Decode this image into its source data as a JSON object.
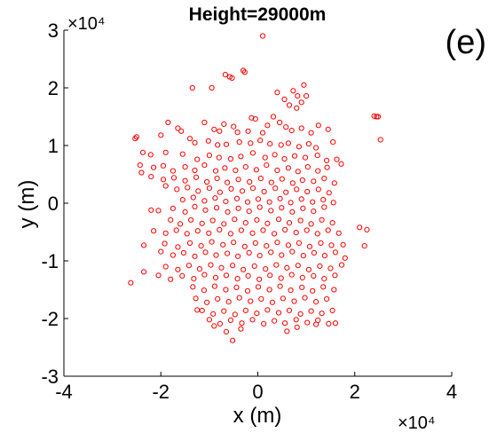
{
  "chart_data": {
    "type": "scatter",
    "title": "Height=29000m",
    "panel_label": "(e)",
    "xlabel": "x (m)",
    "ylabel": "y (m)",
    "x_multiplier": "×10⁴",
    "y_multiplier": "×10⁴",
    "xlim": [
      -40000,
      40000
    ],
    "ylim": [
      -30000,
      30000
    ],
    "x_ticks": [
      -40000,
      -20000,
      0,
      20000,
      40000
    ],
    "x_tick_labels": [
      "-4",
      "-2",
      "0",
      "2",
      "4"
    ],
    "y_ticks": [
      -30000,
      -20000,
      -10000,
      0,
      10000,
      20000,
      30000
    ],
    "y_tick_labels": [
      "-3",
      "-2",
      "-1",
      "0",
      "1",
      "2",
      "3"
    ],
    "grid": false,
    "marker": "circle-open",
    "color": "#ff0000",
    "points": [
      [
        1000,
        29000
      ],
      [
        -3000,
        23000
      ],
      [
        -2700,
        22700
      ],
      [
        -6700,
        22300
      ],
      [
        -5800,
        21900
      ],
      [
        -5300,
        21700
      ],
      [
        -13500,
        20000
      ],
      [
        -9500,
        20000
      ],
      [
        9500,
        20500
      ],
      [
        7300,
        19500
      ],
      [
        4000,
        19200
      ],
      [
        8200,
        18600
      ],
      [
        10000,
        18600
      ],
      [
        5500,
        18000
      ],
      [
        6500,
        17000
      ],
      [
        9000,
        17500
      ],
      [
        8000,
        16500
      ],
      [
        24000,
        15100
      ],
      [
        24500,
        15000
      ],
      [
        24800,
        15000
      ],
      [
        3200,
        15000
      ],
      [
        -1300,
        14800
      ],
      [
        -500,
        14600
      ],
      [
        -11000,
        14000
      ],
      [
        -7000,
        13700
      ],
      [
        -5000,
        13300
      ],
      [
        -18500,
        14000
      ],
      [
        -16500,
        13000
      ],
      [
        -15800,
        12500
      ],
      [
        -9000,
        12800
      ],
      [
        -7900,
        12500
      ],
      [
        -4200,
        12300
      ],
      [
        -2000,
        12500
      ],
      [
        1000,
        12200
      ],
      [
        2000,
        13500
      ],
      [
        4500,
        14000
      ],
      [
        5800,
        13200
      ],
      [
        7000,
        12600
      ],
      [
        9000,
        13000
      ],
      [
        11000,
        12200
      ],
      [
        12500,
        13500
      ],
      [
        14500,
        12800
      ],
      [
        -25000,
        11500
      ],
      [
        -25300,
        11200
      ],
      [
        -20000,
        11800
      ],
      [
        -14000,
        11200
      ],
      [
        -13000,
        10500
      ],
      [
        -10200,
        10800
      ],
      [
        -8300,
        10100
      ],
      [
        -6500,
        10200
      ],
      [
        -3800,
        10600
      ],
      [
        -1500,
        10400
      ],
      [
        500,
        10900
      ],
      [
        2500,
        10300
      ],
      [
        4800,
        10100
      ],
      [
        6300,
        10400
      ],
      [
        8500,
        9800
      ],
      [
        10500,
        10300
      ],
      [
        12000,
        9600
      ],
      [
        15500,
        10600
      ],
      [
        25300,
        11000
      ],
      [
        -23700,
        8800
      ],
      [
        -22100,
        8400
      ],
      [
        -19000,
        8800
      ],
      [
        -15500,
        8500
      ],
      [
        -12500,
        7600
      ],
      [
        -10000,
        8300
      ],
      [
        -8000,
        7900
      ],
      [
        -5600,
        7700
      ],
      [
        -3500,
        8100
      ],
      [
        -1000,
        8700
      ],
      [
        1500,
        7900
      ],
      [
        3500,
        8400
      ],
      [
        5500,
        7700
      ],
      [
        7600,
        8200
      ],
      [
        9800,
        7900
      ],
      [
        12300,
        8300
      ],
      [
        14200,
        7400
      ],
      [
        16300,
        7600
      ],
      [
        -24300,
        6600
      ],
      [
        -21500,
        6200
      ],
      [
        -19500,
        6500
      ],
      [
        -17500,
        5600
      ],
      [
        -15000,
        6300
      ],
      [
        -13000,
        5700
      ],
      [
        -11000,
        6600
      ],
      [
        -8700,
        5600
      ],
      [
        -6800,
        6100
      ],
      [
        -4600,
        5700
      ],
      [
        -2500,
        6300
      ],
      [
        -300,
        5800
      ],
      [
        1800,
        6600
      ],
      [
        4000,
        5700
      ],
      [
        6300,
        6100
      ],
      [
        8300,
        5500
      ],
      [
        10300,
        6300
      ],
      [
        12400,
        5600
      ],
      [
        14300,
        6200
      ],
      [
        17200,
        6800
      ],
      [
        -24000,
        5300
      ],
      [
        -22000,
        4600
      ],
      [
        -19500,
        4100
      ],
      [
        -17300,
        4400
      ],
      [
        -15000,
        3900
      ],
      [
        -12700,
        4500
      ],
      [
        -10500,
        3700
      ],
      [
        -8400,
        4300
      ],
      [
        -6300,
        3600
      ],
      [
        -4000,
        4100
      ],
      [
        -1700,
        3700
      ],
      [
        600,
        4300
      ],
      [
        2800,
        3600
      ],
      [
        5000,
        4200
      ],
      [
        7200,
        3500
      ],
      [
        9200,
        4000
      ],
      [
        11500,
        3800
      ],
      [
        13700,
        4300
      ],
      [
        15800,
        3500
      ],
      [
        -19000,
        3000
      ],
      [
        -16700,
        2400
      ],
      [
        -14500,
        2700
      ],
      [
        -12300,
        2100
      ],
      [
        -10000,
        2600
      ],
      [
        -7800,
        1900
      ],
      [
        -5500,
        2500
      ],
      [
        -3200,
        2100
      ],
      [
        -1000,
        2600
      ],
      [
        1300,
        2000
      ],
      [
        3600,
        2600
      ],
      [
        5800,
        1900
      ],
      [
        8000,
        2400
      ],
      [
        10200,
        2000
      ],
      [
        12500,
        2400
      ],
      [
        14700,
        1800
      ],
      [
        -15500,
        600
      ],
      [
        -13300,
        1000
      ],
      [
        -11000,
        400
      ],
      [
        -8800,
        900
      ],
      [
        -6600,
        300
      ],
      [
        -4300,
        800
      ],
      [
        -2100,
        200
      ],
      [
        100,
        700
      ],
      [
        2400,
        200
      ],
      [
        4600,
        800
      ],
      [
        6800,
        100
      ],
      [
        9000,
        700
      ],
      [
        11300,
        200
      ],
      [
        13500,
        600
      ],
      [
        15600,
        100
      ],
      [
        -22000,
        -1200
      ],
      [
        -20500,
        -1300
      ],
      [
        -17500,
        -900
      ],
      [
        -15000,
        -1500
      ],
      [
        -13000,
        -600
      ],
      [
        -10800,
        -1200
      ],
      [
        -8500,
        -800
      ],
      [
        -6200,
        -1500
      ],
      [
        -4000,
        -900
      ],
      [
        -1800,
        -1400
      ],
      [
        400,
        -700
      ],
      [
        2700,
        -1300
      ],
      [
        4900,
        -800
      ],
      [
        7100,
        -1500
      ],
      [
        9300,
        -900
      ],
      [
        11500,
        -1400
      ],
      [
        13700,
        -700
      ],
      [
        -18000,
        -2900
      ],
      [
        -16000,
        -3600
      ],
      [
        -13800,
        -2900
      ],
      [
        -11500,
        -3500
      ],
      [
        -9300,
        -3000
      ],
      [
        -7000,
        -3600
      ],
      [
        -4800,
        -2800
      ],
      [
        -2500,
        -3400
      ],
      [
        -200,
        -2900
      ],
      [
        2000,
        -3500
      ],
      [
        4300,
        -2800
      ],
      [
        6500,
        -3400
      ],
      [
        8800,
        -3000
      ],
      [
        11000,
        -3600
      ],
      [
        13200,
        -2900
      ],
      [
        15400,
        -3400
      ],
      [
        -21500,
        -4800
      ],
      [
        -19000,
        -5200
      ],
      [
        -16800,
        -4700
      ],
      [
        -14600,
        -5300
      ],
      [
        -12400,
        -4800
      ],
      [
        -10100,
        -5200
      ],
      [
        -7900,
        -4600
      ],
      [
        -5600,
        -5300
      ],
      [
        -3400,
        -4700
      ],
      [
        -1100,
        -5200
      ],
      [
        1100,
        -4700
      ],
      [
        3400,
        -5300
      ],
      [
        5600,
        -4600
      ],
      [
        7900,
        -5100
      ],
      [
        10100,
        -4700
      ],
      [
        12300,
        -5300
      ],
      [
        14500,
        -4700
      ],
      [
        16700,
        -5200
      ],
      [
        21000,
        -4200
      ],
      [
        22500,
        -4600
      ],
      [
        -23500,
        -7300
      ],
      [
        -19200,
        -7000
      ],
      [
        -16500,
        -7600
      ],
      [
        -14000,
        -6900
      ],
      [
        -11700,
        -7400
      ],
      [
        -9500,
        -6700
      ],
      [
        -7200,
        -7200
      ],
      [
        -5000,
        -6800
      ],
      [
        -2700,
        -7500
      ],
      [
        -500,
        -6900
      ],
      [
        1800,
        -7400
      ],
      [
        4000,
        -6800
      ],
      [
        6300,
        -7300
      ],
      [
        8500,
        -6900
      ],
      [
        10700,
        -7500
      ],
      [
        13000,
        -6900
      ],
      [
        15200,
        -7300
      ],
      [
        17600,
        -7200
      ],
      [
        22000,
        -7400
      ],
      [
        -20000,
        -8400
      ],
      [
        -17500,
        -9000
      ],
      [
        -15300,
        -8600
      ],
      [
        -13000,
        -9200
      ],
      [
        -10800,
        -8500
      ],
      [
        -8600,
        -9000
      ],
      [
        -6300,
        -8700
      ],
      [
        -4100,
        -9200
      ],
      [
        -1800,
        -8600
      ],
      [
        400,
        -9100
      ],
      [
        2700,
        -8500
      ],
      [
        4900,
        -9000
      ],
      [
        7100,
        -8400
      ],
      [
        9400,
        -9100
      ],
      [
        11600,
        -8600
      ],
      [
        13800,
        -9100
      ],
      [
        16000,
        -8500
      ],
      [
        18000,
        -9500
      ],
      [
        -26200,
        -13800
      ],
      [
        -23500,
        -11900
      ],
      [
        -19000,
        -11000
      ],
      [
        -16500,
        -11500
      ],
      [
        -14200,
        -10800
      ],
      [
        -12000,
        -11400
      ],
      [
        -9700,
        -10700
      ],
      [
        -7500,
        -11200
      ],
      [
        -5200,
        -10800
      ],
      [
        -3000,
        -11500
      ],
      [
        -700,
        -10900
      ],
      [
        1600,
        -11400
      ],
      [
        3800,
        -10700
      ],
      [
        6000,
        -11200
      ],
      [
        8300,
        -10800
      ],
      [
        10500,
        -11500
      ],
      [
        12800,
        -10900
      ],
      [
        15000,
        -11300
      ],
      [
        17300,
        -10700
      ],
      [
        -20500,
        -12500
      ],
      [
        -18000,
        -13200
      ],
      [
        -15600,
        -12600
      ],
      [
        -13200,
        -13100
      ],
      [
        -11000,
        -12400
      ],
      [
        -8700,
        -12900
      ],
      [
        -6500,
        -12500
      ],
      [
        -4200,
        -13100
      ],
      [
        -2000,
        -12600
      ],
      [
        300,
        -13200
      ],
      [
        2500,
        -12500
      ],
      [
        4800,
        -13000
      ],
      [
        7000,
        -12400
      ],
      [
        9200,
        -12900
      ],
      [
        11500,
        -12600
      ],
      [
        13700,
        -13100
      ],
      [
        15900,
        -12500
      ],
      [
        -13400,
        -14500
      ],
      [
        -11100,
        -15100
      ],
      [
        -8900,
        -14400
      ],
      [
        -6600,
        -15000
      ],
      [
        -4400,
        -14600
      ],
      [
        -2100,
        -15200
      ],
      [
        100,
        -14500
      ],
      [
        2400,
        -15000
      ],
      [
        4600,
        -14400
      ],
      [
        6800,
        -15100
      ],
      [
        9100,
        -14600
      ],
      [
        11300,
        -15200
      ],
      [
        13500,
        -14500
      ],
      [
        15700,
        -15000
      ],
      [
        -12800,
        -16500
      ],
      [
        -10500,
        -17200
      ],
      [
        -8300,
        -16600
      ],
      [
        -6000,
        -17100
      ],
      [
        -3800,
        -16400
      ],
      [
        -1500,
        -17000
      ],
      [
        700,
        -16600
      ],
      [
        3000,
        -17200
      ],
      [
        5200,
        -16500
      ],
      [
        7500,
        -17000
      ],
      [
        9700,
        -16400
      ],
      [
        12000,
        -17100
      ],
      [
        14200,
        -16600
      ],
      [
        -11500,
        -18600
      ],
      [
        -9200,
        -19200
      ],
      [
        -7000,
        -18700
      ],
      [
        -4700,
        -19300
      ],
      [
        -2500,
        -18600
      ],
      [
        -200,
        -19100
      ],
      [
        2000,
        -18500
      ],
      [
        4300,
        -19000
      ],
      [
        6500,
        -18600
      ],
      [
        8800,
        -19200
      ],
      [
        11000,
        -18700
      ],
      [
        13200,
        -19100
      ],
      [
        15400,
        -18600
      ],
      [
        -12500,
        -18500
      ],
      [
        -10000,
        -20200
      ],
      [
        -7800,
        -20900
      ],
      [
        -5600,
        -20300
      ],
      [
        -3300,
        -20800
      ],
      [
        -1100,
        -20200
      ],
      [
        1200,
        -20900
      ],
      [
        3400,
        -20400
      ],
      [
        5600,
        -20800
      ],
      [
        7900,
        -20200
      ],
      [
        10200,
        -20700
      ],
      [
        12400,
        -20300
      ],
      [
        14600,
        -20900
      ],
      [
        16000,
        -20800
      ],
      [
        -9000,
        -21300
      ],
      [
        -6500,
        -22300
      ],
      [
        -3500,
        -21800
      ],
      [
        6000,
        -22200
      ],
      [
        12000,
        -21000
      ],
      [
        -5200,
        -23800
      ],
      [
        8100,
        -21500
      ]
    ]
  }
}
